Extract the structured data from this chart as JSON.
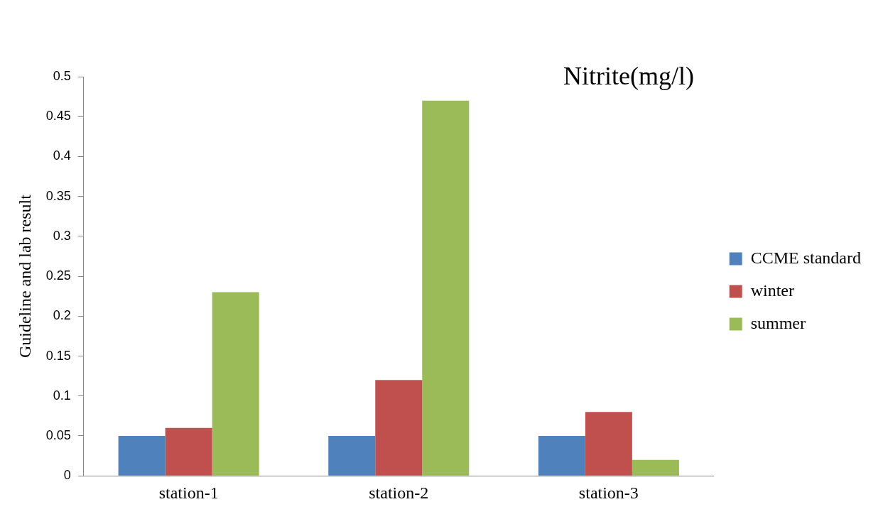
{
  "chart_data": {
    "type": "bar",
    "title": "Nitrite(mg/l)",
    "ylabel": "Guideline and lab result",
    "categories": [
      "station-1",
      "station-2",
      "station-3"
    ],
    "series": [
      {
        "name": "CCME standard",
        "color": "#4f81bd",
        "values": [
          0.05,
          0.05,
          0.05
        ]
      },
      {
        "name": "winter",
        "color": "#c0504d",
        "values": [
          0.06,
          0.12,
          0.08
        ]
      },
      {
        "name": "summer",
        "color": "#9bbb59",
        "values": [
          0.23,
          0.47,
          0.02
        ]
      }
    ],
    "ylim": [
      0,
      0.5
    ],
    "yticks": [
      0,
      0.05,
      0.1,
      0.15,
      0.2,
      0.25,
      0.3,
      0.35,
      0.4,
      0.45,
      0.5
    ],
    "grid": false,
    "legend": "right"
  }
}
